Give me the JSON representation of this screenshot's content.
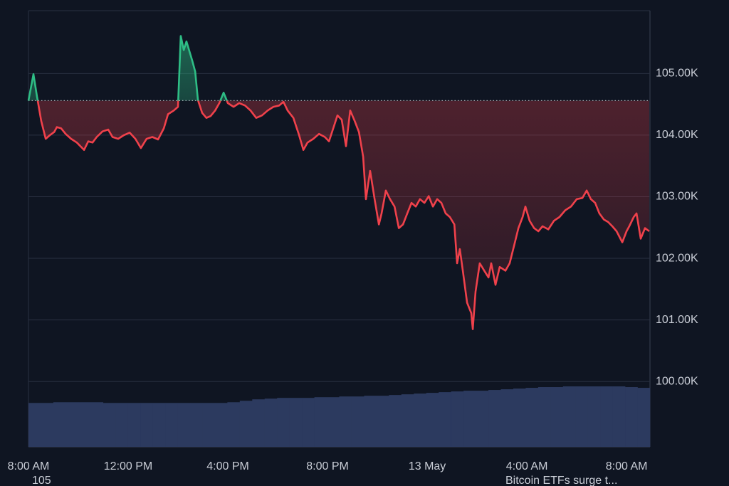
{
  "chart_data": {
    "type": "line",
    "x": [
      0,
      0.2,
      0.34,
      0.51,
      0.69,
      0.86,
      1.03,
      1.14,
      1.31,
      1.49,
      1.71,
      1.94,
      2.23,
      2.4,
      2.57,
      2.74,
      2.97,
      3.2,
      3.37,
      3.6,
      3.83,
      4.06,
      4.29,
      4.51,
      4.74,
      4.97,
      5.2,
      5.43,
      5.6,
      5.83,
      6,
      6.11,
      6.23,
      6.34,
      6.46,
      6.57,
      6.69,
      6.8,
      6.97,
      7.14,
      7.31,
      7.49,
      7.66,
      7.83,
      8,
      8.23,
      8.46,
      8.69,
      8.91,
      9.14,
      9.37,
      9.6,
      9.83,
      10.06,
      10.23,
      10.4,
      10.63,
      10.86,
      11.03,
      11.2,
      11.43,
      11.66,
      11.89,
      12.06,
      12.23,
      12.4,
      12.57,
      12.74,
      12.91,
      13.09,
      13.26,
      13.43,
      13.54,
      13.71,
      13.89,
      14.06,
      14.17,
      14.34,
      14.51,
      14.69,
      14.86,
      15.03,
      15.2,
      15.37,
      15.54,
      15.71,
      15.89,
      16.06,
      16.23,
      16.4,
      16.57,
      16.74,
      16.91,
      17.09,
      17.2,
      17.31,
      17.43,
      17.6,
      17.77,
      17.83,
      17.94,
      18.11,
      18.29,
      18.46,
      18.57,
      18.74,
      18.91,
      19.14,
      19.31,
      19.49,
      19.66,
      19.83,
      19.94,
      20.11,
      20.29,
      20.46,
      20.63,
      20.86,
      21.09,
      21.31,
      21.54,
      21.77,
      22,
      22.23,
      22.4,
      22.57,
      22.74,
      22.91,
      23.09,
      23.26,
      23.43,
      23.6,
      23.83,
      24,
      24.11,
      24.29,
      24.4,
      24.57,
      24.74,
      24.91
    ],
    "values": [
      104560,
      104990,
      104630,
      104230,
      103940,
      104000,
      104050,
      104130,
      104110,
      104020,
      103940,
      103880,
      103760,
      103900,
      103880,
      103970,
      104060,
      104090,
      103970,
      103940,
      104000,
      104040,
      103940,
      103790,
      103940,
      103970,
      103930,
      104110,
      104340,
      104400,
      104460,
      105610,
      105380,
      105520,
      105360,
      105210,
      105030,
      104570,
      104360,
      104280,
      104310,
      104400,
      104520,
      104690,
      104520,
      104460,
      104520,
      104480,
      104400,
      104280,
      104320,
      104400,
      104460,
      104480,
      104540,
      104400,
      104280,
      104000,
      103760,
      103880,
      103940,
      104020,
      103970,
      103900,
      104110,
      104320,
      104250,
      103820,
      104400,
      104230,
      104050,
      103650,
      102960,
      103420,
      102960,
      102550,
      102730,
      103100,
      102960,
      102840,
      102490,
      102550,
      102730,
      102900,
      102840,
      102960,
      102900,
      103010,
      102840,
      102960,
      102900,
      102730,
      102670,
      102550,
      101920,
      102150,
      101800,
      101280,
      101110,
      100850,
      101460,
      101920,
      101800,
      101690,
      101920,
      101570,
      101860,
      101800,
      101920,
      102210,
      102490,
      102670,
      102840,
      102610,
      102490,
      102440,
      102520,
      102470,
      102610,
      102670,
      102780,
      102840,
      102960,
      102980,
      103100,
      102960,
      102900,
      102730,
      102630,
      102590,
      102520,
      102440,
      102260,
      102440,
      102520,
      102670,
      102730,
      102320,
      102490,
      102440
    ],
    "baseline": 104560,
    "up_color": "#2ebd85",
    "down_color": "#f0414b",
    "xlim": [
      0,
      24.94
    ],
    "ylim": [
      98940,
      106020
    ],
    "xticks": [
      {
        "value": 0,
        "label": "8:00 AM"
      },
      {
        "value": 4,
        "label": "12:00 PM"
      },
      {
        "value": 8,
        "label": "4:00 PM"
      },
      {
        "value": 12,
        "label": "8:00 PM"
      },
      {
        "value": 16,
        "label": "13 May"
      },
      {
        "value": 20,
        "label": "4:00 AM"
      },
      {
        "value": 24,
        "label": "8:00 AM"
      }
    ],
    "yticks": [
      {
        "value": 100000,
        "label": "100.00K"
      },
      {
        "value": 101000,
        "label": "101.00K"
      },
      {
        "value": 102000,
        "label": "102.00K"
      },
      {
        "value": 103000,
        "label": "103.00K"
      },
      {
        "value": 104000,
        "label": "104.00K"
      },
      {
        "value": 105000,
        "label": "105.00K"
      }
    ],
    "grid": true,
    "volume": {
      "color": "#2c3a5f",
      "values": [
        61,
        61,
        62,
        62,
        62,
        62,
        61,
        61,
        61,
        61,
        61,
        61,
        61,
        61,
        61,
        61,
        62,
        64,
        66,
        67,
        68,
        68,
        68,
        69,
        69,
        70,
        70,
        71,
        71,
        72,
        73,
        74,
        75,
        76,
        77,
        78,
        78,
        79,
        80,
        81,
        82,
        83,
        83,
        84,
        84,
        84,
        84,
        84,
        83,
        82
      ]
    },
    "footer_texts": [
      "105",
      "Bitcoin ETFs surge t..."
    ]
  }
}
